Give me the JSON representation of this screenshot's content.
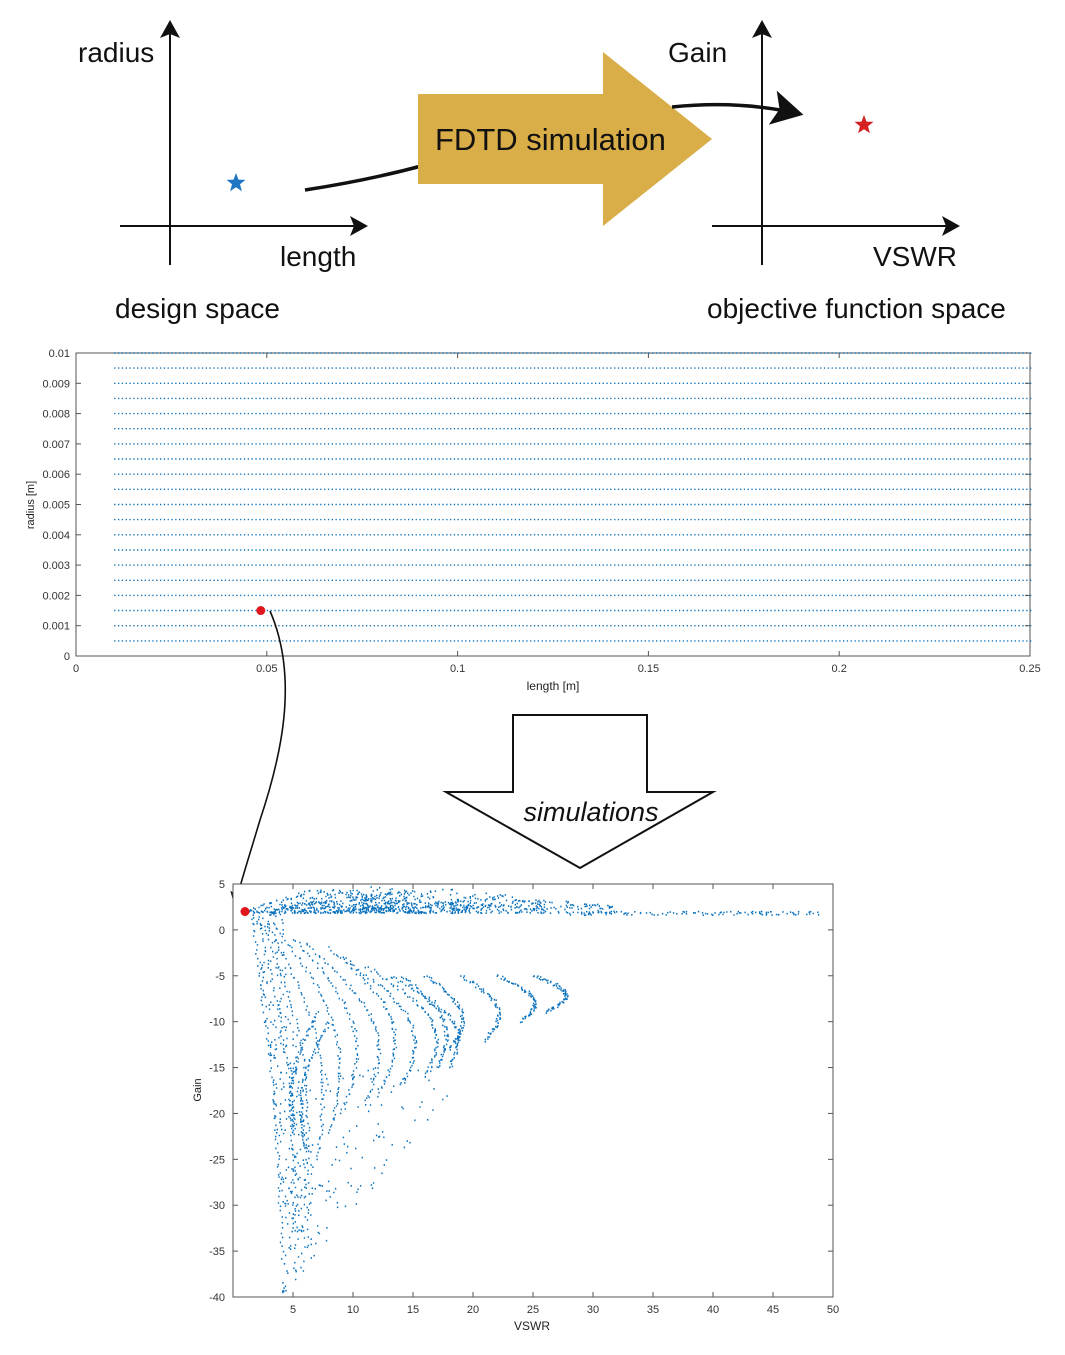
{
  "concept": {
    "design_space": {
      "y_label": "radius",
      "x_label": "length",
      "caption": "design space",
      "marker": "star",
      "marker_color": "#1f77c4"
    },
    "process_label": "FDTD simulation",
    "process_color": "#d9ad47",
    "objective_space": {
      "y_label": "Gain",
      "x_label": "VSWR",
      "caption": "objective function space",
      "marker": "star",
      "marker_color": "#d42020"
    }
  },
  "simulations_label": "simulations",
  "colors": {
    "points": "#0b72bd",
    "highlight": "#e0161c",
    "axis": "#444444"
  },
  "chart_data": [
    {
      "type": "scatter",
      "name": "design-space-grid",
      "xlabel": "length [m]",
      "ylabel": "radius [m]",
      "xlim": [
        0,
        0.25
      ],
      "ylim": [
        0,
        0.01
      ],
      "x_ticks": [
        0,
        0.05,
        0.1,
        0.15,
        0.2,
        0.25
      ],
      "x_tick_labels": [
        "0",
        "0.05",
        "0.1",
        "0.15",
        "0.2",
        "0.25"
      ],
      "y_ticks": [
        0,
        0.001,
        0.002,
        0.003,
        0.004,
        0.005,
        0.006,
        0.007,
        0.008,
        0.009,
        0.01
      ],
      "y_tick_labels": [
        "0",
        "0.001",
        "0.002",
        "0.003",
        "0.004",
        "0.005",
        "0.006",
        "0.007",
        "0.008",
        "0.009",
        "0.01"
      ],
      "grid": {
        "x_start": 0.01,
        "x_end": 0.25,
        "x_step": 0.001,
        "y_start": 0.0005,
        "y_end": 0.01,
        "y_step": 0.0005
      },
      "highlight": {
        "x": 0.05,
        "y": 0.0015
      }
    },
    {
      "type": "scatter",
      "name": "objective-space-scatter",
      "xlabel": "VSWR",
      "ylabel": "Gain",
      "xlim": [
        0,
        50
      ],
      "ylim": [
        -40,
        5
      ],
      "x_ticks": [
        5,
        10,
        15,
        20,
        25,
        30,
        35,
        40,
        45,
        50
      ],
      "x_tick_labels": [
        "5",
        "10",
        "15",
        "20",
        "25",
        "30",
        "35",
        "40",
        "45",
        "50"
      ],
      "y_ticks": [
        5,
        0,
        -5,
        -10,
        -15,
        -20,
        -25,
        -30,
        -35,
        -40
      ],
      "y_tick_labels": [
        "5",
        "0",
        "-5",
        "-10",
        "-15",
        "-20",
        "-25",
        "-30",
        "-35",
        "-40"
      ],
      "highlight": {
        "x": 1,
        "y": 2
      },
      "tail_band": {
        "x": [
          28,
          49
        ],
        "y": [
          1.6,
          2.0
        ]
      },
      "upper_band_peaks": [
        {
          "x_start": 1,
          "x_peak": 8,
          "x_end": 16,
          "gain_peak": 4.5
        },
        {
          "x_start": 3,
          "x_peak": 12,
          "x_end": 20,
          "gain_peak": 4.7
        },
        {
          "x_start": 5,
          "x_peak": 17,
          "x_end": 26,
          "gain_peak": 4.5
        },
        {
          "x_start": 8,
          "x_peak": 22,
          "x_end": 32,
          "gain_peak": 3.4
        }
      ],
      "arc_curves": [
        {
          "x_top": 1.5,
          "x_bottom": 4,
          "g_top": 1.5,
          "g_bottom": -35,
          "bulge": 0.5
        },
        {
          "x_top": 2,
          "x_bottom": 5,
          "g_top": 1.0,
          "g_bottom": -32,
          "bulge": 1.0
        },
        {
          "x_top": 2.5,
          "x_bottom": 6,
          "g_top": 0.5,
          "g_bottom": -28,
          "bulge": 1.5
        },
        {
          "x_top": 3,
          "x_bottom": 7,
          "g_top": 0.0,
          "g_bottom": -25,
          "bulge": 2.0
        },
        {
          "x_top": 4,
          "x_bottom": 8,
          "g_top": -0.5,
          "g_bottom": -22,
          "bulge": 2.5
        },
        {
          "x_top": 5,
          "x_bottom": 9,
          "g_top": -1.0,
          "g_bottom": -20,
          "bulge": 3.0
        },
        {
          "x_top": 6,
          "x_bottom": 11,
          "g_top": -1.5,
          "g_bottom": -19,
          "bulge": 3.2
        },
        {
          "x_top": 8,
          "x_bottom": 12,
          "g_top": -2.0,
          "g_bottom": -18,
          "bulge": 3.2
        },
        {
          "x_top": 9,
          "x_bottom": 14,
          "g_top": -3.0,
          "g_bottom": -17,
          "bulge": 3.2
        },
        {
          "x_top": 11,
          "x_bottom": 16,
          "g_top": -4.0,
          "g_bottom": -16,
          "bulge": 3.0
        },
        {
          "x_top": 13,
          "x_bottom": 18,
          "g_top": -5.0,
          "g_bottom": -15,
          "bulge": 2.8
        },
        {
          "x_top": 14,
          "x_bottom": 17,
          "g_top": -5.0,
          "g_bottom": -15,
          "bulge": 2.0
        },
        {
          "x_top": 16,
          "x_bottom": 18,
          "g_top": -5.0,
          "g_bottom": -13,
          "bulge": 2.0
        },
        {
          "x_top": 19,
          "x_bottom": 21,
          "g_top": -5.0,
          "g_bottom": -12,
          "bulge": 2.0
        },
        {
          "x_top": 22,
          "x_bottom": 24,
          "g_top": -5.0,
          "g_bottom": -10,
          "bulge": 2.0
        },
        {
          "x_top": 25,
          "x_bottom": 26,
          "g_top": -5.0,
          "g_bottom": -9,
          "bulge": 2.2
        },
        {
          "x_top": 7,
          "x_bottom": 5,
          "g_top": -9,
          "g_bottom": -22,
          "bulge": -1.0
        },
        {
          "x_top": 8,
          "x_bottom": 6,
          "g_top": -10,
          "g_bottom": -24,
          "bulge": -1.2
        }
      ],
      "sparse_region": {
        "x": [
          4,
          20
        ],
        "y": [
          -40,
          -15
        ]
      }
    }
  ]
}
